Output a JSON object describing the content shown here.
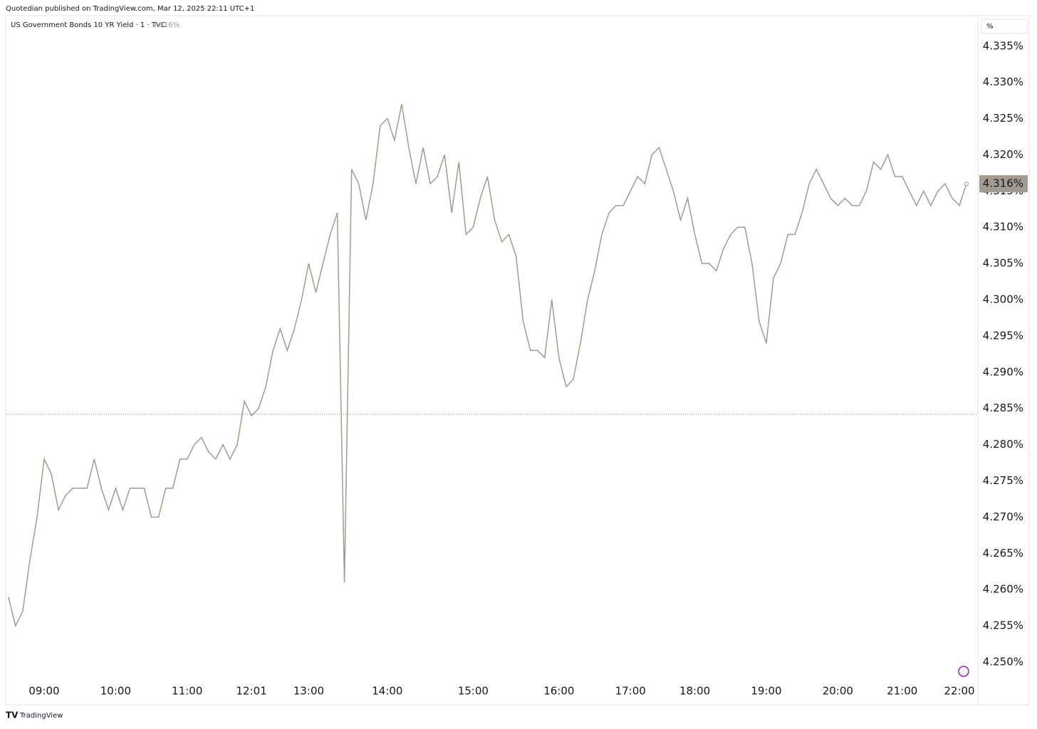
{
  "header": {
    "published": "Quotedian published on TradingView.com, Mar 12, 2025 22:11 UTC+1",
    "footer": "TradingView"
  },
  "chart_data": {
    "type": "line",
    "title": "US Government Bonds 10 YR Yield · 1 · TVC",
    "last_price_label": "4.316%",
    "unit": "%",
    "prev_close": 4.2842,
    "categories": [
      null,
      null,
      null,
      null,
      null,
      "09:00",
      null,
      null,
      null,
      null,
      null,
      null,
      null,
      null,
      null,
      "10:00",
      null,
      null,
      null,
      null,
      null,
      null,
      null,
      null,
      null,
      "11:00",
      null,
      null,
      null,
      null,
      null,
      null,
      null,
      null,
      "12:01",
      null,
      null,
      null,
      null,
      null,
      null,
      null,
      "13:00",
      null,
      null,
      null,
      null,
      null,
      null,
      null,
      null,
      null,
      null,
      "14:00",
      null,
      null,
      null,
      null,
      null,
      null,
      null,
      null,
      null,
      null,
      null,
      "15:00",
      null,
      null,
      null,
      null,
      null,
      null,
      null,
      null,
      null,
      null,
      null,
      "16:00",
      null,
      null,
      null,
      null,
      null,
      null,
      null,
      null,
      null,
      "17:00",
      null,
      null,
      null,
      null,
      null,
      null,
      null,
      null,
      "18:00",
      null,
      null,
      null,
      null,
      null,
      null,
      null,
      null,
      null,
      "19:00",
      null,
      null,
      null,
      null,
      null,
      null,
      null,
      null,
      null,
      "20:00",
      null,
      null,
      null,
      null,
      null,
      null,
      null,
      null,
      "21:00",
      null,
      null,
      null,
      null,
      null,
      null,
      null,
      "22:00",
      null
    ],
    "series": [
      {
        "name": "US Government Bonds 10 YR Yield",
        "color": "#a39a91",
        "values": [
          4.259,
          4.255,
          4.257,
          4.264,
          4.27,
          4.278,
          4.276,
          4.271,
          4.273,
          4.274,
          4.274,
          4.274,
          4.278,
          4.274,
          4.271,
          4.274,
          4.271,
          4.274,
          4.274,
          4.274,
          4.27,
          4.27,
          4.274,
          4.274,
          4.278,
          4.278,
          4.28,
          4.281,
          4.279,
          4.278,
          4.28,
          4.278,
          4.28,
          4.286,
          4.284,
          4.285,
          4.288,
          4.293,
          4.296,
          4.293,
          4.296,
          4.3,
          4.305,
          4.301,
          4.305,
          4.309,
          4.312,
          4.261,
          4.318,
          4.316,
          4.311,
          4.316,
          4.324,
          4.325,
          4.322,
          4.327,
          4.321,
          4.316,
          4.321,
          4.316,
          4.317,
          4.32,
          4.312,
          4.319,
          4.309,
          4.31,
          4.314,
          4.317,
          4.311,
          4.308,
          4.309,
          4.306,
          4.297,
          4.293,
          4.293,
          4.292,
          4.3,
          4.292,
          4.288,
          4.289,
          4.294,
          4.3,
          4.304,
          4.309,
          4.312,
          4.313,
          4.313,
          4.315,
          4.317,
          4.316,
          4.32,
          4.321,
          4.318,
          4.315,
          4.311,
          4.314,
          4.309,
          4.305,
          4.305,
          4.304,
          4.307,
          4.309,
          4.31,
          4.31,
          4.305,
          4.297,
          4.294,
          4.303,
          4.305,
          4.309,
          4.309,
          4.312,
          4.316,
          4.318,
          4.316,
          4.314,
          4.313,
          4.314,
          4.313,
          4.313,
          4.315,
          4.319,
          4.318,
          4.32,
          4.317,
          4.317,
          4.315,
          4.313,
          4.315,
          4.313,
          4.315,
          4.316,
          4.314,
          4.313,
          4.316
        ]
      }
    ],
    "ylim": [
      4.2441,
      4.3392
    ],
    "yticks": [
      {
        "value": 4.25,
        "label": "4.250%"
      },
      {
        "value": 4.255,
        "label": "4.255%"
      },
      {
        "value": 4.26,
        "label": "4.260%"
      },
      {
        "value": 4.265,
        "label": "4.265%"
      },
      {
        "value": 4.27,
        "label": "4.270%"
      },
      {
        "value": 4.275,
        "label": "4.275%"
      },
      {
        "value": 4.28,
        "label": "4.280%"
      },
      {
        "value": 4.285,
        "label": "4.285%"
      },
      {
        "value": 4.29,
        "label": "4.290%"
      },
      {
        "value": 4.295,
        "label": "4.295%"
      },
      {
        "value": 4.3,
        "label": "4.300%"
      },
      {
        "value": 4.305,
        "label": "4.305%"
      },
      {
        "value": 4.31,
        "label": "4.310%"
      },
      {
        "value": 4.315,
        "label": "4.315%"
      },
      {
        "value": 4.32,
        "label": "4.320%"
      },
      {
        "value": 4.325,
        "label": "4.325%"
      },
      {
        "value": 4.33,
        "label": "4.330%"
      },
      {
        "value": 4.335,
        "label": "4.335%"
      }
    ],
    "grid": false
  }
}
